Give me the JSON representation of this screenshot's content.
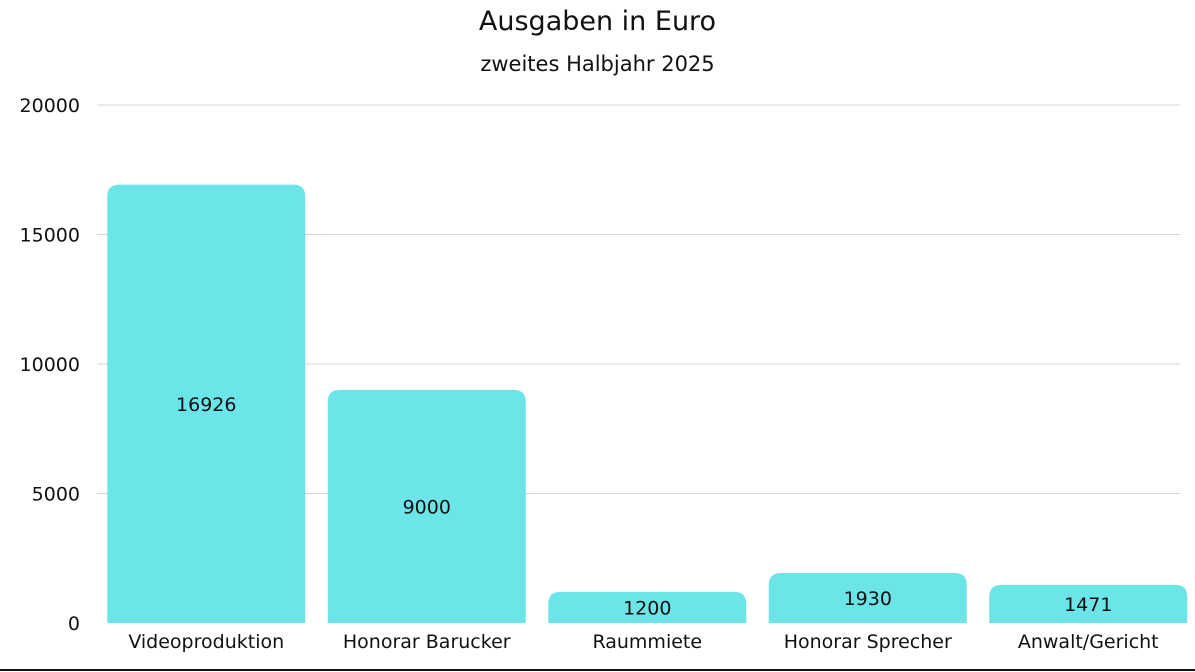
{
  "chart_data": {
    "type": "bar",
    "title": "Ausgaben in Euro",
    "subtitle": "zweites Halbjahr 2025",
    "xlabel": "",
    "ylabel": "",
    "categories": [
      "Videoproduktion",
      "Honorar Barucker",
      "Raummiete",
      "Honorar Sprecher",
      "Anwalt/Gericht"
    ],
    "values": [
      16926,
      9000,
      1200,
      1930,
      1471
    ],
    "data_labels": [
      "16926",
      "9000",
      "1200",
      "1930",
      "1471"
    ],
    "yticks": [
      0,
      5000,
      10000,
      15000,
      20000
    ],
    "ytick_labels": [
      "0",
      "5000",
      "10000",
      "15000",
      "20000"
    ],
    "ylim": [
      0,
      20000
    ],
    "grid": true,
    "legend": "none",
    "colors": {
      "bar": "#6ce5e8",
      "grid": "#d4d4d4",
      "text": "#111111",
      "baseline": "#111111"
    }
  }
}
